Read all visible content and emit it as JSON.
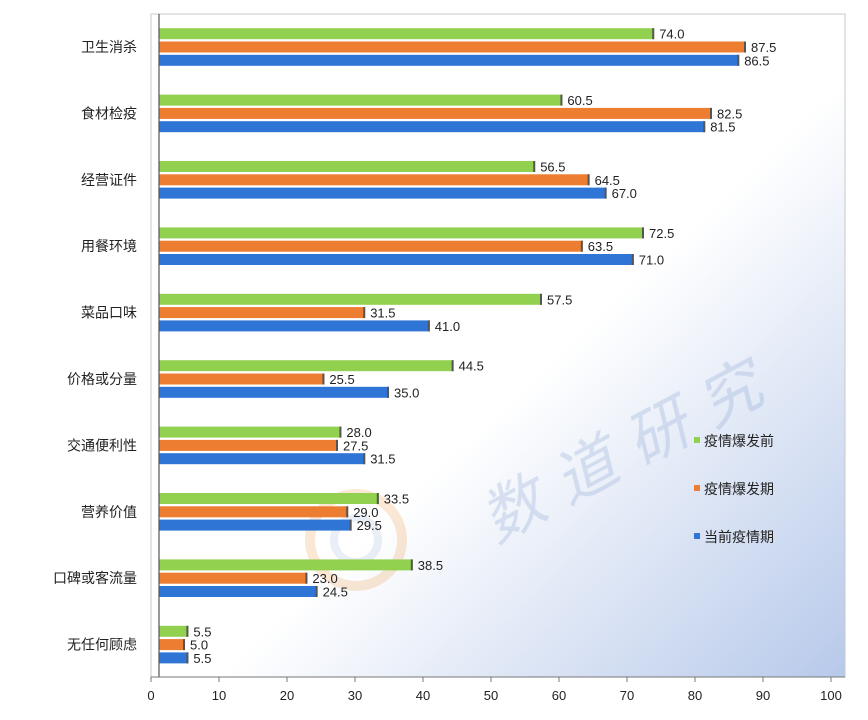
{
  "chart_data": {
    "type": "bar",
    "orientation": "horizontal",
    "categories": [
      "卫生消杀",
      "食材检疫",
      "经营证件",
      "用餐环境",
      "菜品口味",
      "价格或分量",
      "交通便利性",
      "营养价值",
      "口碑或客流量",
      "无任何顾虑"
    ],
    "series": [
      {
        "name": "疫情爆发前",
        "color": "#92d050",
        "values": [
          74.0,
          60.5,
          56.5,
          72.5,
          57.5,
          44.5,
          28.0,
          33.5,
          38.5,
          5.5
        ]
      },
      {
        "name": "疫情爆发期",
        "color": "#ed7d31",
        "values": [
          87.5,
          82.5,
          64.5,
          63.5,
          31.5,
          25.5,
          27.5,
          29.0,
          23.0,
          5.0
        ]
      },
      {
        "name": "当前疫情期",
        "color": "#2e75d6",
        "values": [
          86.5,
          81.5,
          67.0,
          71.0,
          41.0,
          35.0,
          31.5,
          29.5,
          24.5,
          5.5
        ]
      }
    ],
    "xlim": [
      0,
      100
    ],
    "xticks": [
      0,
      10,
      20,
      30,
      40,
      50,
      60,
      70,
      80,
      90,
      100
    ],
    "legend_position": "right",
    "grid": false,
    "value_labels": true
  },
  "watermark_text": "数道研究"
}
